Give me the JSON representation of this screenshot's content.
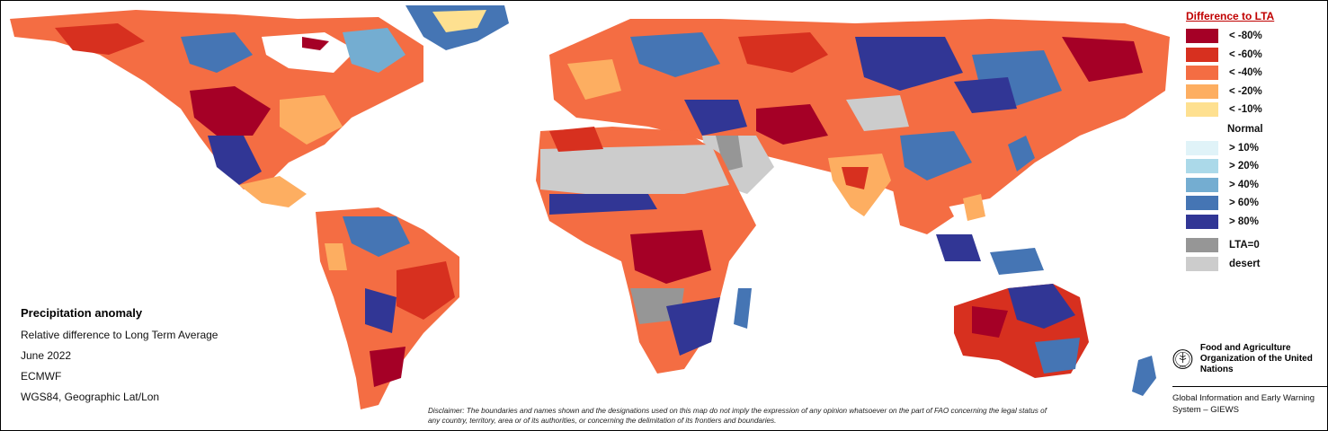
{
  "legend": {
    "title": "Difference to LTA",
    "items": [
      {
        "label": "< -80%",
        "color": "#a50026"
      },
      {
        "label": "< -60%",
        "color": "#d7301f"
      },
      {
        "label": "< -40%",
        "color": "#f46d43"
      },
      {
        "label": "< -20%",
        "color": "#fdae61"
      },
      {
        "label": "< -10%",
        "color": "#fee090"
      }
    ],
    "normal_label": "Normal",
    "wet_items": [
      {
        "label": "> 10%",
        "color": "#e0f3f8"
      },
      {
        "label": "> 20%",
        "color": "#abd9e9"
      },
      {
        "label": "> 40%",
        "color": "#74add1"
      },
      {
        "label": "> 60%",
        "color": "#4575b4"
      },
      {
        "label": "> 80%",
        "color": "#313695"
      }
    ],
    "extra_items": [
      {
        "label": "LTA=0",
        "color": "#969696"
      },
      {
        "label": "desert",
        "color": "#cccccc"
      }
    ]
  },
  "info": {
    "title": "Precipitation anomaly",
    "subtitle": "Relative difference to Long Term Average",
    "date": "June 2022",
    "source": "ECMWF",
    "projection": "WGS84, Geographic Lat/Lon"
  },
  "disclaimer": "Disclaimer: The boundaries and names shown and the designations used on this map do not imply the expression of any opinion whatsoever on the part of FAO concerning the legal status of any country, territory, area or of its authorities, or concerning the delimitation of its frontiers and boundaries.",
  "fao": {
    "logo_text": "FAO",
    "name": "Food and Agriculture Organization of the United Nations",
    "system": "Global Information and Early Warning System – GIEWS"
  }
}
